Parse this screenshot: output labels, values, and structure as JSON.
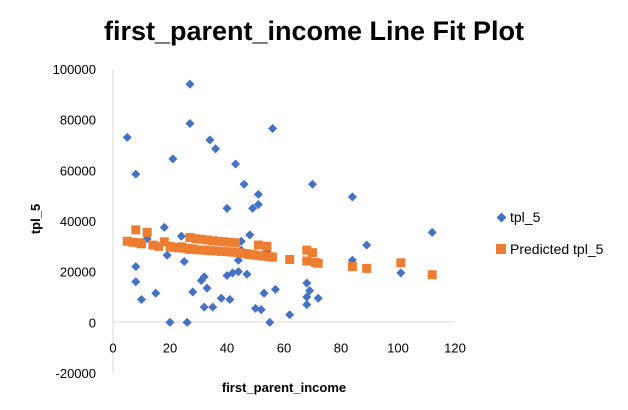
{
  "chart_data": {
    "type": "scatter",
    "title": "first_parent_income Line Fit  Plot",
    "xlabel": "first_parent_income",
    "ylabel": "tpl_5",
    "xlim": [
      0,
      120
    ],
    "ylim": [
      -20000,
      100000
    ],
    "xticks": [
      0,
      20,
      40,
      60,
      80,
      100,
      120
    ],
    "yticks": [
      -20000,
      0,
      20000,
      40000,
      60000,
      80000,
      100000
    ],
    "xtick_labels": [
      "0",
      "20",
      "40",
      "60",
      "80",
      "100",
      "120"
    ],
    "ytick_labels": [
      "-20000",
      "0",
      "20000",
      "40000",
      "60000",
      "80000",
      "100000"
    ],
    "grid": false,
    "legend_position": "right",
    "series": [
      {
        "name": "tpl_5",
        "marker": "diamond",
        "color": "#4472C4",
        "points": [
          [
            5,
            73000
          ],
          [
            8,
            58500
          ],
          [
            8,
            22000
          ],
          [
            8,
            16000
          ],
          [
            10,
            9000
          ],
          [
            12,
            33000
          ],
          [
            15,
            11500
          ],
          [
            18,
            37500
          ],
          [
            19,
            26500
          ],
          [
            20,
            0
          ],
          [
            21,
            64500
          ],
          [
            24,
            34000
          ],
          [
            25,
            24000
          ],
          [
            26,
            0
          ],
          [
            27,
            94000
          ],
          [
            27,
            78500
          ],
          [
            28,
            12000
          ],
          [
            31,
            16500
          ],
          [
            32,
            18000
          ],
          [
            32,
            6000
          ],
          [
            33,
            13500
          ],
          [
            34,
            72000
          ],
          [
            35,
            6000
          ],
          [
            36,
            68500
          ],
          [
            38,
            9500
          ],
          [
            40,
            18500
          ],
          [
            40,
            45000
          ],
          [
            41,
            9000
          ],
          [
            42,
            19500
          ],
          [
            43,
            62500
          ],
          [
            44,
            20000
          ],
          [
            44,
            24500
          ],
          [
            45,
            28500
          ],
          [
            45,
            32000
          ],
          [
            46,
            54500
          ],
          [
            47,
            19000
          ],
          [
            48,
            34500
          ],
          [
            49,
            45000
          ],
          [
            50,
            5500
          ],
          [
            51,
            46500
          ],
          [
            51,
            50500
          ],
          [
            52,
            5000
          ],
          [
            53,
            11500
          ],
          [
            54,
            28000
          ],
          [
            55,
            0
          ],
          [
            56,
            76500
          ],
          [
            57,
            13000
          ],
          [
            62,
            3000
          ],
          [
            68,
            15500
          ],
          [
            68,
            10000
          ],
          [
            68,
            7000
          ],
          [
            69,
            12500
          ],
          [
            70,
            54500
          ],
          [
            72,
            9500
          ],
          [
            84,
            49500
          ],
          [
            84,
            24500
          ],
          [
            89,
            30500
          ],
          [
            101,
            19500
          ],
          [
            112,
            35500
          ]
        ]
      },
      {
        "name": "Predicted tpl_5",
        "marker": "square",
        "color": "#ED7D31",
        "points": [
          [
            5,
            32000
          ],
          [
            7,
            31600
          ],
          [
            8,
            36500
          ],
          [
            9,
            31400
          ],
          [
            10,
            31000
          ],
          [
            12,
            35500
          ],
          [
            14,
            30500
          ],
          [
            16,
            30000
          ],
          [
            18,
            31800
          ],
          [
            20,
            30000
          ],
          [
            21,
            29600
          ],
          [
            23,
            29400
          ],
          [
            24,
            29800
          ],
          [
            25,
            29300
          ],
          [
            26,
            29200
          ],
          [
            27,
            33500
          ],
          [
            27,
            28800
          ],
          [
            28,
            29000
          ],
          [
            29,
            33000
          ],
          [
            30,
            28600
          ],
          [
            31,
            32800
          ],
          [
            32,
            28500
          ],
          [
            33,
            32500
          ],
          [
            34,
            28300
          ],
          [
            35,
            32200
          ],
          [
            36,
            28200
          ],
          [
            37,
            32000
          ],
          [
            38,
            28000
          ],
          [
            39,
            31800
          ],
          [
            40,
            27900
          ],
          [
            41,
            31600
          ],
          [
            42,
            27700
          ],
          [
            43,
            31400
          ],
          [
            44,
            27500
          ],
          [
            45,
            27300
          ],
          [
            46,
            27200
          ],
          [
            47,
            27000
          ],
          [
            48,
            26800
          ],
          [
            49,
            26700
          ],
          [
            50,
            26500
          ],
          [
            51,
            30500
          ],
          [
            52,
            26300
          ],
          [
            53,
            26100
          ],
          [
            54,
            30000
          ],
          [
            55,
            25900
          ],
          [
            56,
            25700
          ],
          [
            62,
            24800
          ],
          [
            68,
            28500
          ],
          [
            68,
            24200
          ],
          [
            70,
            27500
          ],
          [
            71,
            23600
          ],
          [
            72,
            23300
          ],
          [
            84,
            22000
          ],
          [
            89,
            21300
          ],
          [
            101,
            23500
          ],
          [
            112,
            18800
          ]
        ]
      }
    ]
  }
}
